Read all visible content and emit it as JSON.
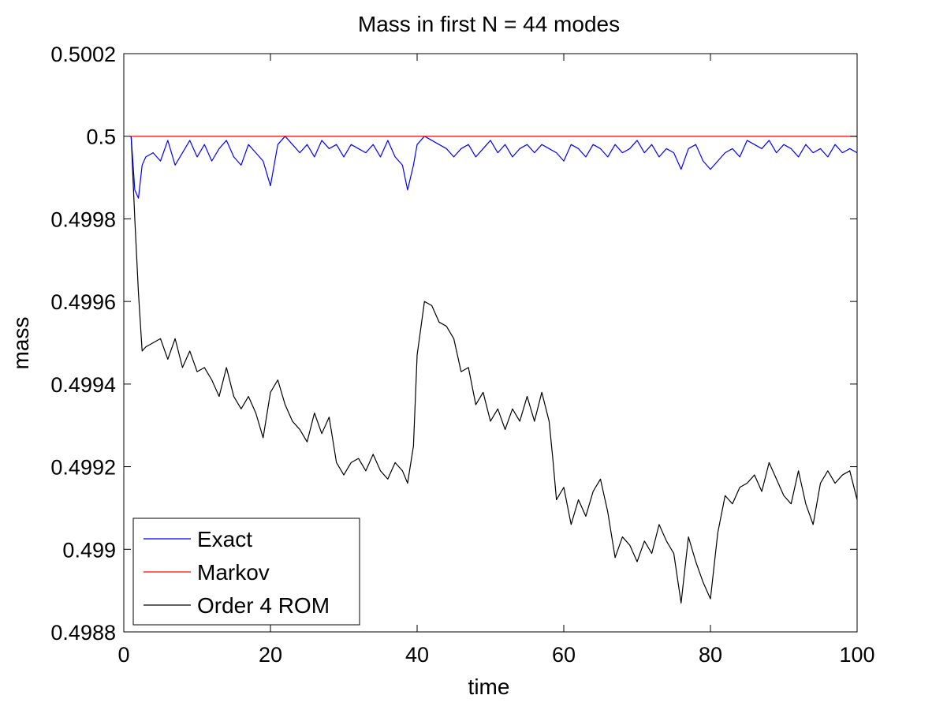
{
  "chart_data": {
    "type": "line",
    "title": "Mass in first N = 44 modes",
    "xlabel": "time",
    "ylabel": "mass",
    "xlim": [
      0,
      100
    ],
    "ylim": [
      0.4988,
      0.5002
    ],
    "xticks": [
      0,
      20,
      40,
      60,
      80,
      100
    ],
    "xtick_labels": [
      "0",
      "20",
      "40",
      "60",
      "80",
      "100"
    ],
    "yticks": [
      0.4988,
      0.499,
      0.4992,
      0.4994,
      0.4996,
      0.4998,
      0.5,
      0.5002
    ],
    "ytick_labels": [
      "0.4988",
      "0.499",
      "0.4992",
      "0.4994",
      "0.4996",
      "0.4998",
      "0.5",
      "0.5002"
    ],
    "grid": false,
    "legend_position": "bottom-left",
    "series": [
      {
        "name": "Exact",
        "color": "#0000ff",
        "x": [
          1,
          1.5,
          2,
          2.5,
          3,
          4,
          5,
          6,
          7,
          8,
          9,
          10,
          11,
          12,
          13,
          14,
          15,
          16,
          17,
          18,
          19,
          20,
          21,
          22,
          23,
          24,
          25,
          26,
          27,
          28,
          29,
          30,
          31,
          32,
          33,
          34,
          35,
          36,
          37,
          38,
          38.7,
          39.5,
          40,
          41,
          42,
          43,
          44,
          45,
          46,
          47,
          48,
          49,
          50,
          51,
          52,
          53,
          54,
          55,
          56,
          57,
          58,
          59,
          60,
          61,
          62,
          63,
          64,
          65,
          66,
          67,
          68,
          69,
          70,
          71,
          72,
          73,
          74,
          75,
          76,
          77,
          78,
          79,
          80,
          81,
          82,
          83,
          84,
          85,
          86,
          87,
          88,
          89,
          90,
          91,
          92,
          93,
          94,
          95,
          96,
          97,
          98,
          99,
          100
        ],
        "values": [
          0.5,
          0.49987,
          0.49985,
          0.49993,
          0.49995,
          0.49996,
          0.49994,
          0.49999,
          0.49993,
          0.49996,
          0.49999,
          0.49995,
          0.49998,
          0.49994,
          0.49997,
          0.49999,
          0.49995,
          0.49993,
          0.49998,
          0.49996,
          0.49994,
          0.49988,
          0.49998,
          0.5,
          0.49998,
          0.49996,
          0.49998,
          0.49995,
          0.49999,
          0.49997,
          0.49998,
          0.49995,
          0.49998,
          0.49997,
          0.49996,
          0.49998,
          0.49995,
          0.49999,
          0.49995,
          0.49993,
          0.49987,
          0.49993,
          0.49998,
          0.5,
          0.49999,
          0.49998,
          0.49997,
          0.49995,
          0.49997,
          0.49998,
          0.49995,
          0.49997,
          0.49999,
          0.49996,
          0.49998,
          0.49995,
          0.49997,
          0.49998,
          0.49996,
          0.49998,
          0.49997,
          0.49996,
          0.49994,
          0.49998,
          0.49997,
          0.49995,
          0.49998,
          0.49997,
          0.49995,
          0.49998,
          0.49996,
          0.49997,
          0.49999,
          0.49996,
          0.49998,
          0.49995,
          0.49997,
          0.49996,
          0.49992,
          0.49997,
          0.49998,
          0.49994,
          0.49992,
          0.49994,
          0.49996,
          0.49997,
          0.49995,
          0.49999,
          0.49998,
          0.49997,
          0.49999,
          0.49996,
          0.49998,
          0.49997,
          0.49995,
          0.49998,
          0.49996,
          0.49997,
          0.49995,
          0.49998,
          0.49996,
          0.49997,
          0.49996
        ]
      },
      {
        "name": "Markov",
        "color": "#ff0000",
        "x": [
          1,
          100
        ],
        "values": [
          0.5,
          0.5
        ]
      },
      {
        "name": "Order 4 ROM",
        "color": "#000000",
        "x": [
          1,
          1.5,
          2,
          2.5,
          3,
          4,
          5,
          6,
          7,
          8,
          9,
          10,
          11,
          12,
          13,
          14,
          15,
          16,
          17,
          18,
          19,
          20,
          21,
          22,
          23,
          24,
          25,
          26,
          27,
          28,
          29,
          30,
          31,
          32,
          33,
          34,
          35,
          36,
          37,
          38,
          38.7,
          39.5,
          40,
          41,
          42,
          43,
          44,
          45,
          46,
          47,
          48,
          49,
          50,
          51,
          52,
          53,
          54,
          55,
          56,
          57,
          58,
          58.5,
          59,
          60,
          61,
          62,
          63,
          64,
          65,
          66,
          67,
          68,
          69,
          70,
          71,
          72,
          73,
          74,
          75,
          76,
          77,
          78,
          79,
          80,
          81,
          82,
          83,
          84,
          85,
          86,
          87,
          88,
          89,
          90,
          91,
          92,
          93,
          94,
          95,
          96,
          97,
          98,
          99,
          100
        ],
        "values": [
          0.5,
          0.4998,
          0.49962,
          0.49948,
          0.49949,
          0.4995,
          0.49951,
          0.49946,
          0.49951,
          0.49944,
          0.49948,
          0.49943,
          0.49944,
          0.49941,
          0.49937,
          0.49944,
          0.49937,
          0.49934,
          0.49937,
          0.49933,
          0.49927,
          0.49938,
          0.49941,
          0.49935,
          0.49931,
          0.49929,
          0.49926,
          0.49933,
          0.49928,
          0.49932,
          0.49921,
          0.49918,
          0.49921,
          0.49922,
          0.49919,
          0.49923,
          0.49919,
          0.49917,
          0.49921,
          0.49919,
          0.49916,
          0.49925,
          0.49947,
          0.4996,
          0.49959,
          0.49955,
          0.49954,
          0.49951,
          0.49943,
          0.49944,
          0.49935,
          0.49938,
          0.49931,
          0.49934,
          0.49929,
          0.49934,
          0.49931,
          0.49937,
          0.49931,
          0.49938,
          0.49931,
          0.49922,
          0.49912,
          0.49915,
          0.49906,
          0.49912,
          0.49908,
          0.49914,
          0.49917,
          0.49909,
          0.49898,
          0.49903,
          0.49901,
          0.49897,
          0.49902,
          0.49899,
          0.49906,
          0.49902,
          0.49899,
          0.49887,
          0.49903,
          0.49897,
          0.49892,
          0.49888,
          0.49904,
          0.49913,
          0.49911,
          0.49915,
          0.49916,
          0.49918,
          0.49914,
          0.49921,
          0.49917,
          0.49913,
          0.49911,
          0.49919,
          0.49911,
          0.49906,
          0.49916,
          0.49919,
          0.49916,
          0.49918,
          0.49919,
          0.49912
        ]
      }
    ]
  }
}
